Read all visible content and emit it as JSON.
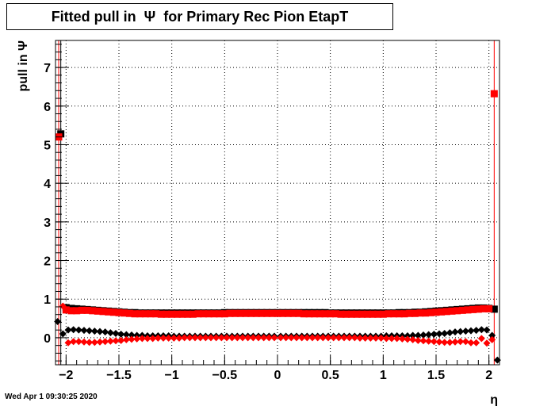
{
  "chart_data": {
    "type": "scatter",
    "title": "Fitted pull in  Ψ  for Primary Rec Pion EtapT",
    "xlabel": "η",
    "ylabel": "pull in  Ψ",
    "xlim": [
      -2.1,
      2.1
    ],
    "ylim": [
      -0.7,
      7.7
    ],
    "x_ticks": [
      -2,
      -1.5,
      -1,
      -0.5,
      0,
      0.5,
      1,
      1.5,
      2
    ],
    "x_tick_labels": [
      "−2",
      "−1.5",
      "−1",
      "−0.5",
      "0",
      "0.5",
      "1",
      "1.5",
      "2"
    ],
    "y_ticks": [
      0,
      1,
      2,
      3,
      4,
      5,
      6,
      7
    ],
    "y_tick_labels": [
      "0",
      "1",
      "2",
      "3",
      "4",
      "5",
      "6",
      "7"
    ],
    "grid": true,
    "series": [
      {
        "color": "#000000",
        "marker": "square",
        "x": [
          -2.05,
          -2.0,
          -1.95,
          -1.9,
          -1.85,
          -1.8,
          -1.75,
          -1.7,
          -1.65,
          -1.6,
          -1.55,
          -1.5,
          -1.45,
          -1.4,
          -1.35,
          -1.3,
          -1.25,
          -1.2,
          -1.15,
          -1.1,
          -1.05,
          -1.0,
          -0.95,
          -0.9,
          -0.85,
          -0.8,
          -0.75,
          -0.7,
          -0.65,
          -0.6,
          -0.55,
          -0.5,
          -0.45,
          -0.4,
          -0.35,
          -0.3,
          -0.25,
          -0.2,
          -0.15,
          -0.1,
          -0.05,
          0.0,
          0.05,
          0.1,
          0.15,
          0.2,
          0.25,
          0.3,
          0.35,
          0.4,
          0.45,
          0.5,
          0.55,
          0.6,
          0.65,
          0.7,
          0.75,
          0.8,
          0.85,
          0.9,
          0.95,
          1.0,
          1.05,
          1.1,
          1.15,
          1.2,
          1.25,
          1.3,
          1.35,
          1.4,
          1.45,
          1.5,
          1.55,
          1.6,
          1.65,
          1.7,
          1.75,
          1.8,
          1.85,
          1.9,
          1.95,
          2.0,
          2.05
        ],
        "y": [
          5.28,
          0.78,
          0.76,
          0.75,
          0.74,
          0.73,
          0.72,
          0.71,
          0.7,
          0.69,
          0.68,
          0.67,
          0.66,
          0.65,
          0.65,
          0.64,
          0.64,
          0.64,
          0.64,
          0.64,
          0.64,
          0.64,
          0.64,
          0.64,
          0.64,
          0.64,
          0.64,
          0.64,
          0.64,
          0.64,
          0.64,
          0.65,
          0.65,
          0.65,
          0.65,
          0.65,
          0.65,
          0.65,
          0.65,
          0.65,
          0.65,
          0.65,
          0.65,
          0.65,
          0.65,
          0.65,
          0.65,
          0.65,
          0.65,
          0.65,
          0.65,
          0.64,
          0.64,
          0.64,
          0.64,
          0.64,
          0.64,
          0.64,
          0.64,
          0.64,
          0.64,
          0.64,
          0.64,
          0.64,
          0.65,
          0.65,
          0.65,
          0.66,
          0.66,
          0.67,
          0.68,
          0.69,
          0.7,
          0.71,
          0.72,
          0.73,
          0.74,
          0.75,
          0.76,
          0.77,
          0.77,
          0.76,
          0.74
        ]
      },
      {
        "color": "#ff0000",
        "marker": "square",
        "x": [
          -2.07,
          -2.0,
          -1.95,
          -1.9,
          -1.85,
          -1.8,
          -1.75,
          -1.7,
          -1.65,
          -1.6,
          -1.55,
          -1.5,
          -1.45,
          -1.4,
          -1.35,
          -1.3,
          -1.25,
          -1.2,
          -1.15,
          -1.1,
          -1.05,
          -1.0,
          -0.95,
          -0.9,
          -0.85,
          -0.8,
          -0.75,
          -0.7,
          -0.65,
          -0.6,
          -0.55,
          -0.5,
          -0.45,
          -0.4,
          -0.35,
          -0.3,
          -0.25,
          -0.2,
          -0.15,
          -0.1,
          -0.05,
          0.0,
          0.05,
          0.1,
          0.15,
          0.2,
          0.25,
          0.3,
          0.35,
          0.4,
          0.45,
          0.5,
          0.55,
          0.6,
          0.65,
          0.7,
          0.75,
          0.8,
          0.85,
          0.9,
          0.95,
          1.0,
          1.05,
          1.1,
          1.15,
          1.2,
          1.25,
          1.3,
          1.35,
          1.4,
          1.45,
          1.5,
          1.55,
          1.6,
          1.65,
          1.7,
          1.75,
          1.8,
          1.85,
          1.9,
          1.95,
          2.0,
          2.05
        ],
        "y": [
          5.2,
          0.72,
          0.7,
          0.7,
          0.71,
          0.71,
          0.7,
          0.69,
          0.68,
          0.67,
          0.66,
          0.65,
          0.64,
          0.63,
          0.62,
          0.62,
          0.62,
          0.62,
          0.62,
          0.61,
          0.61,
          0.61,
          0.61,
          0.61,
          0.61,
          0.61,
          0.62,
          0.62,
          0.62,
          0.62,
          0.62,
          0.62,
          0.63,
          0.63,
          0.63,
          0.63,
          0.63,
          0.63,
          0.63,
          0.63,
          0.63,
          0.63,
          0.63,
          0.63,
          0.63,
          0.63,
          0.62,
          0.62,
          0.62,
          0.62,
          0.62,
          0.62,
          0.62,
          0.61,
          0.61,
          0.61,
          0.61,
          0.61,
          0.61,
          0.61,
          0.61,
          0.61,
          0.62,
          0.62,
          0.62,
          0.62,
          0.63,
          0.63,
          0.64,
          0.64,
          0.65,
          0.66,
          0.67,
          0.68,
          0.69,
          0.7,
          0.71,
          0.72,
          0.73,
          0.74,
          0.75,
          0.75,
          6.32
        ]
      },
      {
        "color": "#000000",
        "marker": "diamond",
        "x": [
          -2.08,
          -2.03,
          -1.98,
          -1.93,
          -1.88,
          -1.83,
          -1.78,
          -1.73,
          -1.68,
          -1.63,
          -1.58,
          -1.53,
          -1.48,
          -1.43,
          -1.38,
          -1.33,
          -1.28,
          -1.23,
          -1.18,
          -1.13,
          -1.08,
          -1.03,
          -0.98,
          -0.93,
          -0.88,
          -0.83,
          -0.78,
          -0.73,
          -0.68,
          -0.63,
          -0.58,
          -0.53,
          -0.48,
          -0.43,
          -0.38,
          -0.33,
          -0.28,
          -0.23,
          -0.18,
          -0.13,
          -0.08,
          -0.03,
          0.03,
          0.08,
          0.13,
          0.18,
          0.23,
          0.28,
          0.33,
          0.38,
          0.43,
          0.48,
          0.53,
          0.58,
          0.63,
          0.68,
          0.73,
          0.78,
          0.83,
          0.88,
          0.93,
          0.98,
          1.03,
          1.08,
          1.13,
          1.18,
          1.23,
          1.28,
          1.33,
          1.38,
          1.43,
          1.48,
          1.53,
          1.58,
          1.63,
          1.68,
          1.73,
          1.78,
          1.83,
          1.88,
          1.93,
          1.98,
          2.03,
          2.08
        ],
        "y": [
          0.42,
          0.1,
          0.2,
          0.21,
          0.2,
          0.19,
          0.18,
          0.17,
          0.16,
          0.15,
          0.13,
          0.11,
          0.09,
          0.08,
          0.07,
          0.06,
          0.06,
          0.05,
          0.05,
          0.05,
          0.05,
          0.05,
          0.04,
          0.04,
          0.04,
          0.04,
          0.04,
          0.04,
          0.04,
          0.04,
          0.04,
          0.04,
          0.04,
          0.04,
          0.04,
          0.04,
          0.04,
          0.04,
          0.04,
          0.04,
          0.04,
          0.04,
          0.04,
          0.04,
          0.04,
          0.04,
          0.04,
          0.04,
          0.04,
          0.04,
          0.04,
          0.04,
          0.04,
          0.04,
          0.04,
          0.04,
          0.04,
          0.04,
          0.04,
          0.04,
          0.04,
          0.04,
          0.05,
          0.05,
          0.05,
          0.05,
          0.05,
          0.06,
          0.06,
          0.07,
          0.08,
          0.09,
          0.1,
          0.11,
          0.13,
          0.15,
          0.16,
          0.17,
          0.18,
          0.19,
          0.21,
          0.2,
          0.06,
          -0.58
        ]
      },
      {
        "color": "#ff0000",
        "marker": "diamond",
        "x": [
          -2.03,
          -1.98,
          -1.93,
          -1.88,
          -1.83,
          -1.78,
          -1.73,
          -1.68,
          -1.63,
          -1.58,
          -1.53,
          -1.48,
          -1.43,
          -1.38,
          -1.33,
          -1.28,
          -1.23,
          -1.18,
          -1.13,
          -1.08,
          -1.03,
          -0.98,
          -0.93,
          -0.88,
          -0.83,
          -0.78,
          -0.73,
          -0.68,
          -0.63,
          -0.58,
          -0.53,
          -0.48,
          -0.43,
          -0.38,
          -0.33,
          -0.28,
          -0.23,
          -0.18,
          -0.13,
          -0.08,
          -0.03,
          0.03,
          0.08,
          0.13,
          0.18,
          0.23,
          0.28,
          0.33,
          0.38,
          0.43,
          0.48,
          0.53,
          0.58,
          0.63,
          0.68,
          0.73,
          0.78,
          0.83,
          0.88,
          0.93,
          0.98,
          1.03,
          1.08,
          1.13,
          1.18,
          1.23,
          1.28,
          1.33,
          1.38,
          1.43,
          1.48,
          1.53,
          1.58,
          1.63,
          1.68,
          1.73,
          1.78,
          1.83,
          1.88,
          1.93,
          1.98,
          2.03
        ],
        "y": [
          0.82,
          -0.13,
          -0.1,
          -0.1,
          -0.11,
          -0.12,
          -0.12,
          -0.11,
          -0.1,
          -0.09,
          -0.08,
          -0.07,
          -0.05,
          -0.04,
          -0.03,
          -0.02,
          -0.02,
          -0.02,
          -0.01,
          -0.01,
          -0.01,
          -0.01,
          -0.01,
          0.0,
          0.0,
          0.0,
          0.0,
          0.0,
          0.0,
          0.0,
          0.0,
          0.0,
          0.0,
          0.0,
          0.0,
          0.0,
          0.0,
          0.0,
          0.0,
          0.0,
          0.0,
          0.0,
          0.0,
          0.0,
          0.0,
          0.0,
          0.0,
          0.0,
          0.0,
          0.0,
          0.0,
          0.0,
          0.0,
          0.0,
          0.0,
          0.0,
          -0.01,
          -0.01,
          -0.01,
          -0.01,
          -0.01,
          -0.02,
          -0.02,
          -0.02,
          -0.03,
          -0.04,
          -0.05,
          -0.07,
          -0.08,
          -0.09,
          -0.1,
          -0.11,
          -0.12,
          -0.12,
          -0.11,
          -0.1,
          -0.1,
          -0.13,
          -0.13,
          -0.02,
          -0.14,
          -0.05
        ]
      }
    ]
  },
  "footer": {
    "timestamp": "Wed Apr  1 09:30:25 2020"
  }
}
